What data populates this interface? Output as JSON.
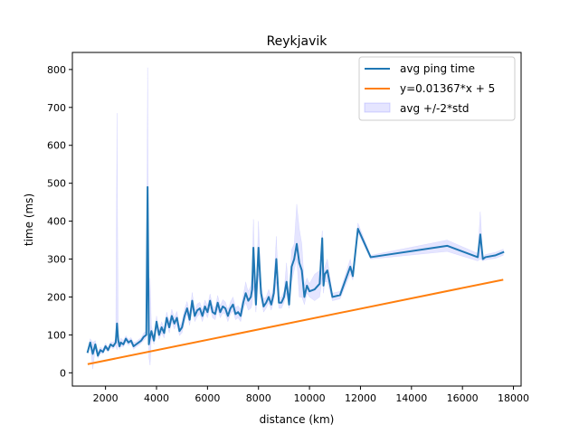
{
  "chart_data": {
    "type": "line",
    "title": "Reykjavik",
    "xlabel": "distance (km)",
    "ylabel": "time (ms)",
    "xlim": [
      700,
      18300
    ],
    "ylim": [
      -35,
      845
    ],
    "xticks": [
      2000,
      4000,
      6000,
      8000,
      10000,
      12000,
      14000,
      16000,
      18000
    ],
    "yticks": [
      0,
      100,
      200,
      300,
      400,
      500,
      600,
      700,
      800
    ],
    "grid": false,
    "legend_position": "top-right",
    "colors": {
      "avg": "#1f77b4",
      "fit": "#ff7f0e",
      "band": "#0000ff"
    },
    "series": [
      {
        "name": "avg ping time",
        "kind": "line",
        "x": [
          1300,
          1400,
          1500,
          1600,
          1700,
          1800,
          1900,
          2000,
          2100,
          2200,
          2300,
          2400,
          2450,
          2500,
          2550,
          2600,
          2700,
          2800,
          2900,
          3000,
          3100,
          3200,
          3300,
          3400,
          3500,
          3600,
          3650,
          3700,
          3750,
          3800,
          3900,
          4000,
          4100,
          4200,
          4300,
          4400,
          4500,
          4600,
          4700,
          4800,
          4900,
          5000,
          5100,
          5200,
          5300,
          5400,
          5500,
          5600,
          5700,
          5800,
          5900,
          6000,
          6100,
          6200,
          6300,
          6400,
          6500,
          6600,
          6700,
          6800,
          6900,
          7000,
          7100,
          7200,
          7300,
          7400,
          7500,
          7550,
          7600,
          7700,
          7750,
          7800,
          7900,
          8000,
          8100,
          8200,
          8300,
          8400,
          8500,
          8600,
          8700,
          8800,
          8900,
          9000,
          9100,
          9200,
          9300,
          9400,
          9500,
          9600,
          9700,
          9800,
          9900,
          10000,
          10200,
          10400,
          10500,
          10550,
          10600,
          10700,
          10900,
          11200,
          11600,
          11700,
          11900,
          12400,
          15400,
          16600,
          16700,
          16800,
          16900,
          17300,
          17600
        ],
        "y": [
          55,
          80,
          50,
          75,
          45,
          60,
          55,
          70,
          60,
          75,
          70,
          80,
          130,
          85,
          70,
          80,
          75,
          90,
          80,
          85,
          70,
          75,
          80,
          85,
          95,
          100,
          490,
          75,
          95,
          110,
          85,
          135,
          100,
          120,
          105,
          145,
          120,
          150,
          130,
          145,
          110,
          120,
          150,
          170,
          140,
          190,
          150,
          165,
          170,
          150,
          175,
          160,
          190,
          160,
          155,
          185,
          160,
          175,
          170,
          150,
          170,
          180,
          155,
          160,
          150,
          185,
          210,
          200,
          190,
          200,
          220,
          330,
          180,
          330,
          210,
          175,
          185,
          200,
          180,
          210,
          300,
          185,
          185,
          200,
          240,
          180,
          280,
          300,
          340,
          290,
          270,
          200,
          230,
          215,
          220,
          235,
          355,
          230,
          260,
          270,
          200,
          205,
          280,
          255,
          380,
          305,
          335,
          305,
          365,
          300,
          305,
          310,
          318
        ]
      },
      {
        "name": "y=0.01367*x + 5",
        "kind": "line",
        "x": [
          1300,
          17600
        ],
        "y": [
          22.8,
          245.6
        ]
      },
      {
        "name": "avg +/-2*std",
        "kind": "band",
        "x": [
          1300,
          1400,
          1500,
          1600,
          1700,
          1800,
          1900,
          2000,
          2100,
          2200,
          2300,
          2400,
          2450,
          2500,
          2550,
          2600,
          2700,
          2800,
          2900,
          3000,
          3100,
          3200,
          3300,
          3400,
          3500,
          3600,
          3650,
          3700,
          3750,
          3800,
          3900,
          4000,
          4100,
          4200,
          4300,
          4400,
          4500,
          4600,
          4700,
          4800,
          4900,
          5000,
          5100,
          5200,
          5300,
          5400,
          5500,
          5600,
          5700,
          5800,
          5900,
          6000,
          6100,
          6200,
          6300,
          6400,
          6500,
          6600,
          6700,
          6800,
          6900,
          7000,
          7100,
          7200,
          7300,
          7400,
          7500,
          7550,
          7600,
          7700,
          7750,
          7800,
          7900,
          8000,
          8100,
          8200,
          8300,
          8400,
          8500,
          8600,
          8700,
          8800,
          8900,
          9000,
          9100,
          9200,
          9300,
          9400,
          9500,
          9600,
          9700,
          9800,
          9900,
          10000,
          10200,
          10400,
          10500,
          10550,
          10600,
          10700,
          10900,
          11200,
          11600,
          11700,
          11900,
          12400,
          15400,
          16600,
          16700,
          16800,
          16900,
          17300,
          17600
        ],
        "lower": [
          50,
          72,
          10,
          65,
          38,
          52,
          50,
          62,
          55,
          68,
          63,
          72,
          60,
          75,
          62,
          70,
          68,
          82,
          72,
          78,
          62,
          68,
          72,
          78,
          85,
          92,
          300,
          40,
          20,
          95,
          75,
          120,
          88,
          105,
          92,
          130,
          105,
          135,
          115,
          130,
          98,
          105,
          135,
          155,
          125,
          170,
          135,
          148,
          155,
          135,
          160,
          145,
          172,
          145,
          140,
          168,
          145,
          158,
          155,
          135,
          155,
          163,
          140,
          145,
          135,
          168,
          185,
          175,
          165,
          170,
          180,
          230,
          160,
          260,
          195,
          160,
          170,
          185,
          165,
          190,
          240,
          170,
          170,
          185,
          210,
          170,
          240,
          270,
          300,
          200,
          200,
          180,
          210,
          200,
          190,
          200,
          250,
          210,
          240,
          240,
          190,
          195,
          260,
          245,
          370,
          300,
          320,
          295,
          300,
          295,
          298,
          302,
          310
        ],
        "upper": [
          60,
          90,
          80,
          85,
          55,
          68,
          62,
          78,
          66,
          82,
          80,
          90,
          685,
          96,
          80,
          92,
          85,
          98,
          88,
          93,
          80,
          82,
          88,
          92,
          105,
          110,
          805,
          160,
          250,
          125,
          95,
          150,
          112,
          135,
          118,
          160,
          135,
          168,
          145,
          162,
          122,
          135,
          168,
          188,
          155,
          212,
          165,
          182,
          186,
          166,
          192,
          177,
          208,
          177,
          172,
          204,
          177,
          193,
          187,
          167,
          187,
          200,
          172,
          177,
          167,
          205,
          240,
          225,
          215,
          230,
          260,
          405,
          200,
          400,
          230,
          195,
          200,
          220,
          200,
          235,
          360,
          200,
          200,
          215,
          290,
          195,
          325,
          340,
          445,
          380,
          340,
          230,
          250,
          235,
          260,
          270,
          375,
          250,
          280,
          300,
          210,
          215,
          300,
          265,
          395,
          310,
          350,
          315,
          425,
          305,
          312,
          318,
          326
        ]
      }
    ]
  }
}
